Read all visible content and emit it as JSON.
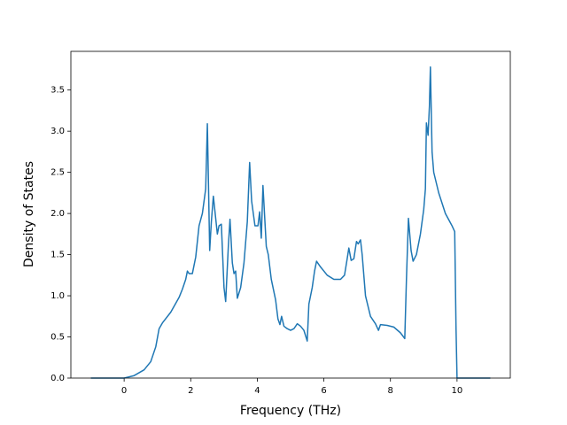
{
  "chart_data": {
    "type": "line",
    "xlabel": "Frequency (THz)",
    "ylabel": "Density of States",
    "xlim": [
      -1.6,
      11.6
    ],
    "ylim": [
      0,
      3.97
    ],
    "xticks": [
      0,
      2,
      4,
      6,
      8,
      10
    ],
    "yticks": [
      {
        "value": 0,
        "label": "0.0"
      },
      {
        "value": 0.5,
        "label": "0.5"
      },
      {
        "value": 1,
        "label": "1.0"
      },
      {
        "value": 1.5,
        "label": "1.5"
      },
      {
        "value": 2,
        "label": "2.0"
      },
      {
        "value": 2.5,
        "label": "2.5"
      },
      {
        "value": 3,
        "label": "3.0"
      },
      {
        "value": 3.5,
        "label": "3.5"
      }
    ],
    "series": [
      {
        "color": "#1f77b4",
        "x": [
          -1,
          0,
          0.3,
          0.6,
          0.8,
          0.95,
          1.05,
          1.15,
          1.4,
          1.65,
          1.75,
          1.85,
          1.9,
          1.95,
          2.05,
          2.15,
          2.25,
          2.35,
          2.45,
          2.5,
          2.57,
          2.62,
          2.68,
          2.8,
          2.85,
          2.92,
          3.0,
          3.05,
          3.13,
          3.18,
          3.25,
          3.3,
          3.35,
          3.4,
          3.5,
          3.6,
          3.7,
          3.77,
          3.83,
          3.93,
          4.02,
          4.07,
          4.12,
          4.17,
          4.27,
          4.33,
          4.42,
          4.55,
          4.62,
          4.68,
          4.73,
          4.8,
          4.9,
          5.0,
          5.1,
          5.2,
          5.3,
          5.4,
          5.5,
          5.55,
          5.65,
          5.72,
          5.78,
          5.9,
          6.1,
          6.3,
          6.5,
          6.62,
          6.7,
          6.75,
          6.82,
          6.9,
          6.98,
          7.03,
          7.1,
          7.15,
          7.25,
          7.4,
          7.55,
          7.64,
          7.7,
          7.9,
          8.1,
          8.3,
          8.43,
          8.48,
          8.54,
          8.62,
          8.68,
          8.78,
          8.9,
          9.0,
          9.05,
          9.08,
          9.13,
          9.17,
          9.2,
          9.25,
          9.3,
          9.45,
          9.65,
          9.85,
          9.93,
          9.97,
          10.0,
          11
        ],
        "values": [
          0,
          0,
          0.03,
          0.1,
          0.2,
          0.38,
          0.6,
          0.67,
          0.8,
          0.98,
          1.08,
          1.2,
          1.3,
          1.27,
          1.27,
          1.47,
          1.85,
          2.0,
          2.3,
          3.09,
          1.55,
          1.9,
          2.21,
          1.75,
          1.85,
          1.87,
          1.1,
          0.93,
          1.6,
          1.93,
          1.4,
          1.27,
          1.3,
          0.97,
          1.1,
          1.4,
          1.9,
          2.62,
          2.15,
          1.85,
          1.85,
          2.02,
          1.7,
          2.34,
          1.6,
          1.5,
          1.2,
          0.95,
          0.72,
          0.65,
          0.75,
          0.63,
          0.6,
          0.58,
          0.6,
          0.66,
          0.63,
          0.58,
          0.45,
          0.9,
          1.1,
          1.3,
          1.42,
          1.35,
          1.25,
          1.2,
          1.2,
          1.25,
          1.45,
          1.58,
          1.43,
          1.45,
          1.66,
          1.63,
          1.68,
          1.5,
          1.0,
          0.75,
          0.66,
          0.58,
          0.65,
          0.64,
          0.62,
          0.55,
          0.48,
          1.2,
          1.94,
          1.55,
          1.42,
          1.5,
          1.75,
          2.05,
          2.3,
          3.1,
          2.95,
          3.3,
          3.78,
          2.75,
          2.5,
          2.25,
          2.0,
          1.85,
          1.78,
          0.6,
          0,
          0
        ]
      }
    ]
  }
}
